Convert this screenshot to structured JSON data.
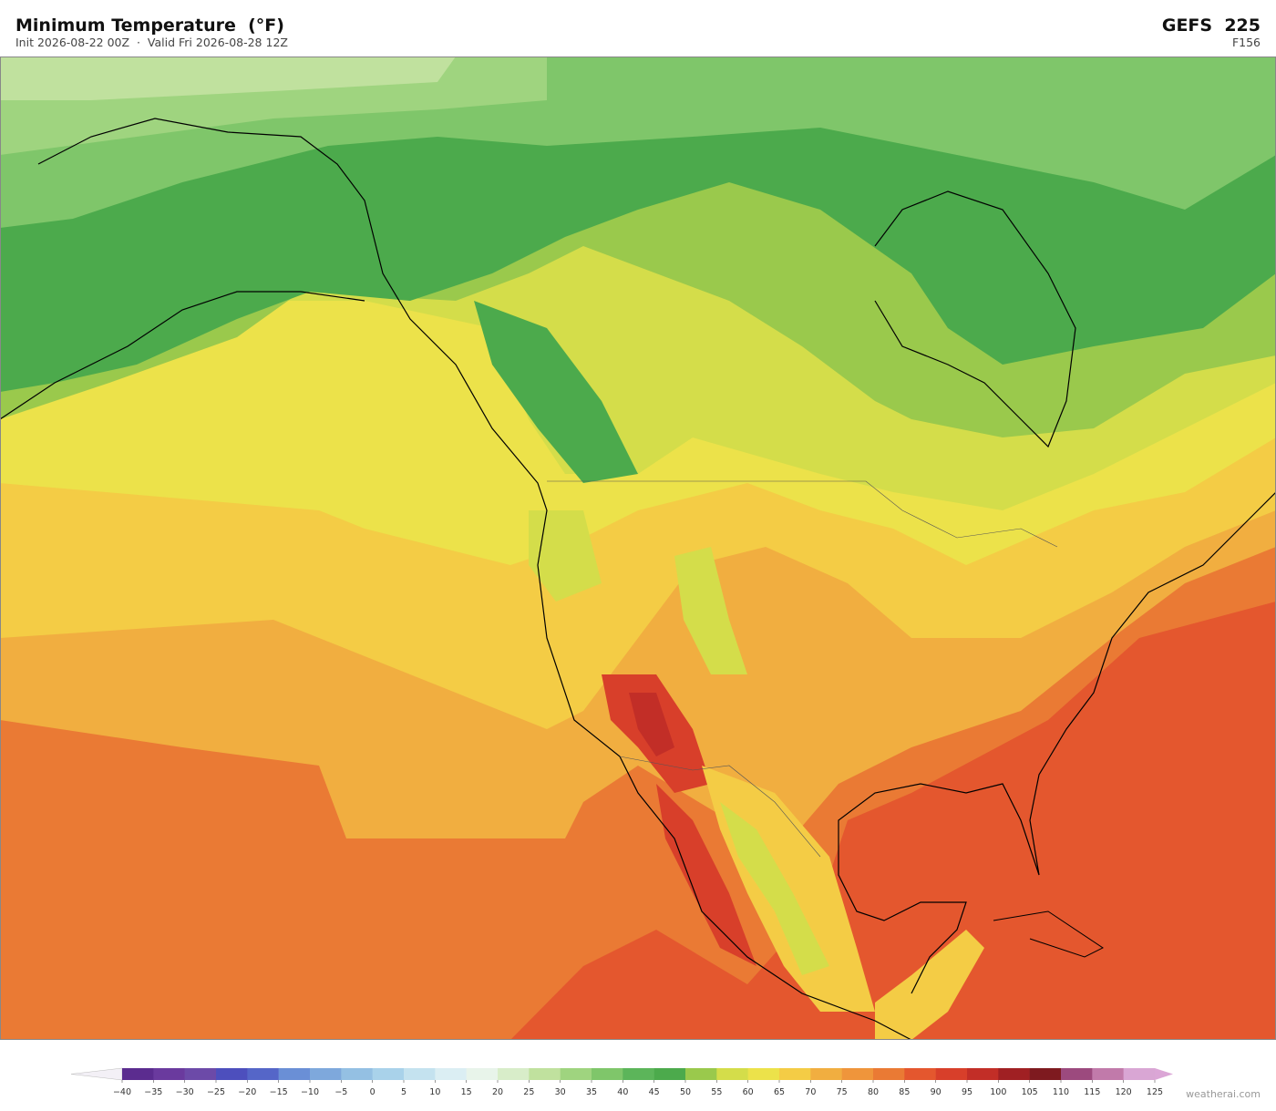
{
  "header": {
    "title": "Minimum Temperature  (°F)",
    "subtitle": "Init 2026-08-22 00Z  ·  Valid Fri 2026-08-28 12Z",
    "model": "GEFS  225",
    "forecast_hour": "F156"
  },
  "colorbar": {
    "ticks": [
      {
        "value": -40,
        "label": "−40"
      },
      {
        "value": -35,
        "label": "−35"
      },
      {
        "value": -30,
        "label": "−30"
      },
      {
        "value": -25,
        "label": "−25"
      },
      {
        "value": -20,
        "label": "−20"
      },
      {
        "value": -15,
        "label": "−15"
      },
      {
        "value": -10,
        "label": "−10"
      },
      {
        "value": -5,
        "label": "−5"
      },
      0,
      5,
      10,
      15,
      20,
      25,
      30,
      35,
      40,
      45,
      50,
      55,
      60,
      65,
      70,
      75,
      80,
      85,
      90,
      95,
      100,
      105,
      110,
      115,
      120,
      125
    ],
    "colors": [
      "#5b2c8f",
      "#6a3a9e",
      "#6c4aa8",
      "#4d4fbd",
      "#5566c8",
      "#6a8fd6",
      "#7ea8dc",
      "#94c0e3",
      "#a9d2ea",
      "#c4e2ef",
      "#dbeef3",
      "#e8f4ea",
      "#d8edc9",
      "#c0e19e",
      "#9fd47f",
      "#7fc66a",
      "#5cb55a",
      "#4caa4c",
      "#9ac94c",
      "#d4dd4a",
      "#ece24a",
      "#f4cc45",
      "#f1ae40",
      "#ef953b",
      "#ea7a34",
      "#e4572e",
      "#d83f2a",
      "#c22e27",
      "#a02023",
      "#7e1a1f",
      "#9c4a7e",
      "#c17aaa",
      "#d9a6d4"
    ],
    "under_color": "#f3f0f6",
    "over_color": "#dba6d6"
  },
  "watermark": "weatherai.com"
}
